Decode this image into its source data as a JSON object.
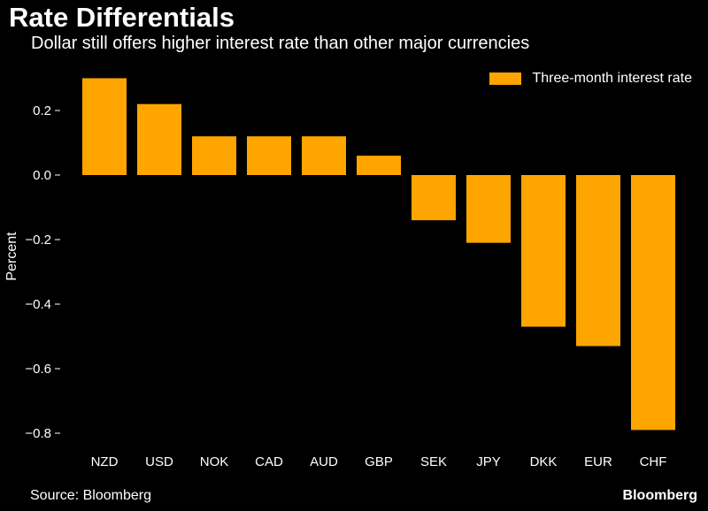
{
  "header": {
    "title": "Rate Differentials",
    "subtitle": "Dollar still offers higher interest rate than other major currencies"
  },
  "legend": {
    "label": "Three-month interest rate"
  },
  "footer": {
    "source": "Source: Bloomberg",
    "brand": "Bloomberg"
  },
  "colors": {
    "bar": "#FFA500",
    "background": "#000000",
    "text": "#FFFFFF"
  },
  "chart_data": {
    "type": "bar",
    "title": "Rate Differentials",
    "subtitle": "Dollar still offers higher interest rate than other major currencies",
    "xlabel": "",
    "ylabel": "Percent",
    "categories": [
      "NZD",
      "USD",
      "NOK",
      "CAD",
      "AUD",
      "GBP",
      "SEK",
      "JPY",
      "DKK",
      "EUR",
      "CHF"
    ],
    "series": [
      {
        "name": "Three-month interest rate",
        "values": [
          0.3,
          0.22,
          0.12,
          0.12,
          0.12,
          0.06,
          -0.14,
          -0.21,
          -0.47,
          -0.53,
          -0.79
        ]
      }
    ],
    "ylim": [
      -0.85,
      0.32
    ],
    "yticks": [
      0.2,
      0.0,
      -0.2,
      -0.4,
      -0.6,
      -0.8
    ],
    "ytick_labels": [
      "0.2",
      "0.0",
      "−0.2",
      "−0.4",
      "−0.6",
      "−0.8"
    ],
    "grid": false,
    "legend_position": "top-right"
  }
}
